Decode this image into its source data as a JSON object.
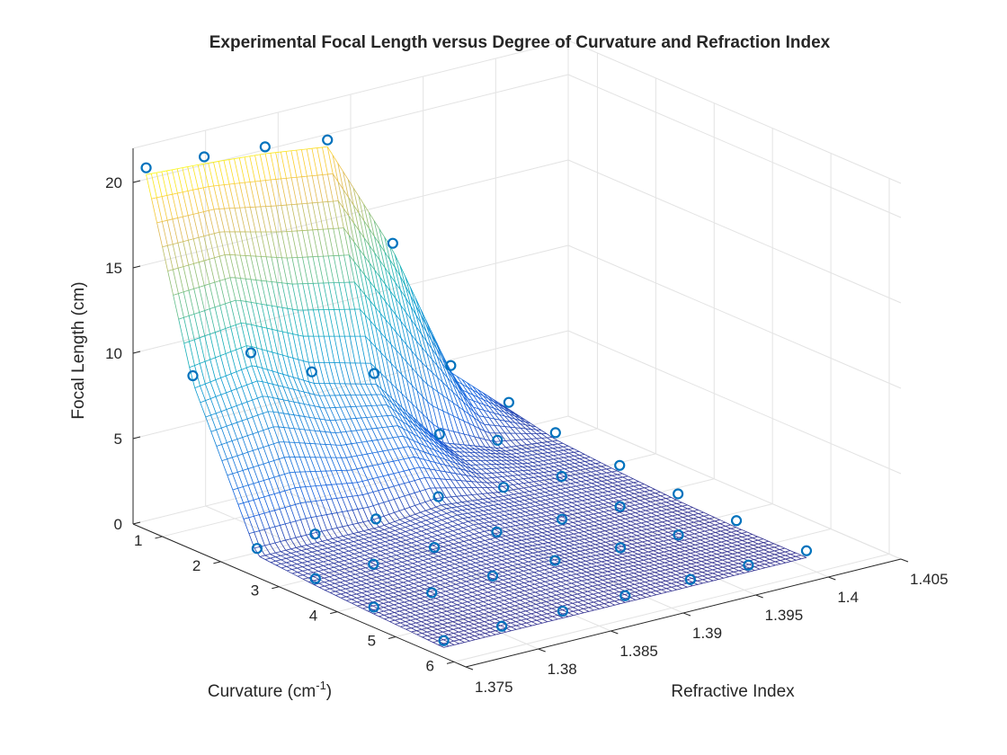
{
  "chart_data": {
    "type": "surface",
    "title": "Experimental Focal Length versus Degree of Curvature and Refraction Index",
    "xlabel": "Refractive Index",
    "ylabel_main": "Curvature (cm",
    "ylabel_sup": "-1",
    "ylabel_close": ")",
    "zlabel": "Focal Length (cm)",
    "xlim": [
      1.375,
      1.405
    ],
    "ylim": [
      0.5,
      6.2
    ],
    "zlim": [
      0,
      22
    ],
    "xticks": [
      "1.375",
      "1.38",
      "1.385",
      "1.39",
      "1.395",
      "1.4",
      "1.405"
    ],
    "yticks": [
      "1",
      "2",
      "3",
      "4",
      "5",
      "6"
    ],
    "zticks": [
      "0",
      "5",
      "10",
      "15",
      "20"
    ],
    "grid": true,
    "colormap": "parula",
    "marker_color": "#0072BD",
    "refractive_index": [
      1.3755,
      1.3795,
      1.3837,
      1.388,
      1.3925,
      1.3965,
      1.4005
    ],
    "curvature": [
      0.6,
      1.4,
      2.5,
      3.5,
      4.5,
      5.7
    ],
    "focal_length": [
      [
        20.5,
        20.3,
        20.0,
        19.5,
        12.5,
        4.5,
        1.5
      ],
      [
        9.5,
        10.0,
        8.0,
        7.0,
        2.5,
        1.3,
        0.9
      ],
      [
        1.0,
        1.0,
        1.0,
        1.4,
        1.0,
        0.8,
        0.6
      ],
      [
        0.7,
        0.7,
        0.8,
        0.8,
        0.6,
        0.5,
        0.4
      ],
      [
        0.5,
        0.5,
        0.6,
        0.6,
        0.4,
        0.3,
        0.3
      ],
      [
        0.3,
        0.3,
        0.3,
        0.3,
        0.3,
        0.3,
        0.3
      ]
    ]
  }
}
